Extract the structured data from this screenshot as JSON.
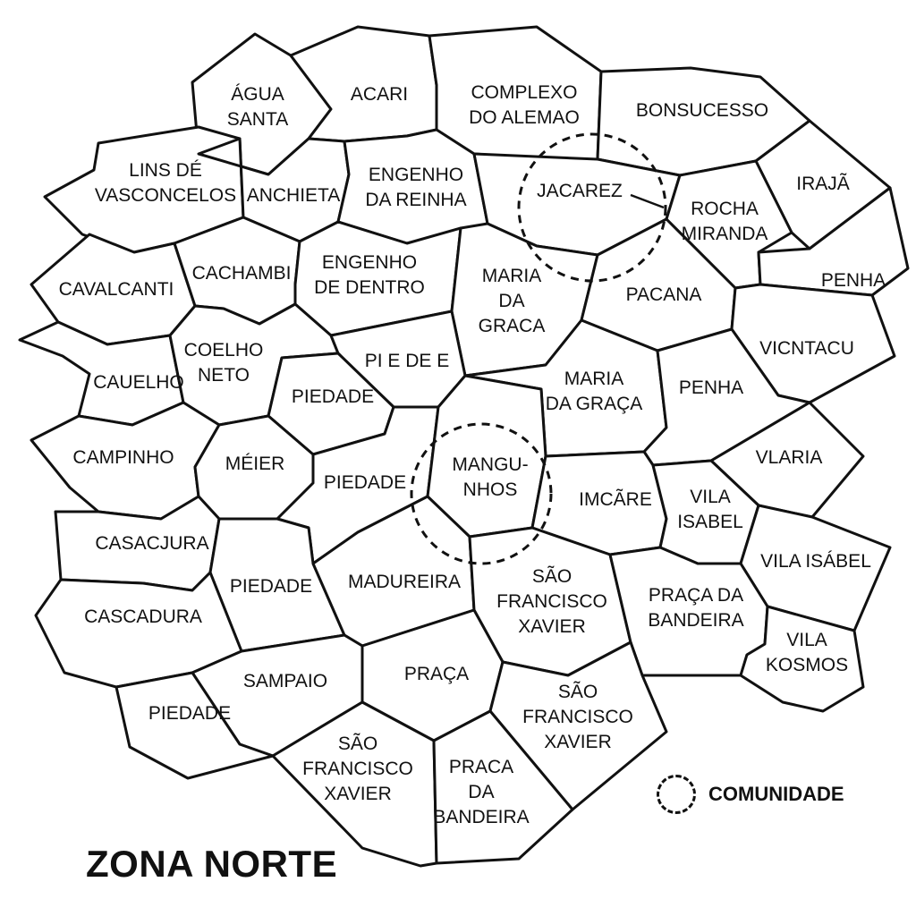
{
  "map": {
    "title": "ZONA NORTE",
    "legend": {
      "label": "COMUNIDADE",
      "symbol": "dashed-circle-icon"
    },
    "colors": {
      "stroke": "#111111",
      "fill": "#ffffff"
    },
    "regions": [
      {
        "id": "agua-santa",
        "lines": [
          "ÁGUA",
          "SANTA"
        ]
      },
      {
        "id": "acari",
        "lines": [
          "ACARI"
        ]
      },
      {
        "id": "complexo-do-alemao",
        "lines": [
          "COMPLEXO",
          "DO ALEMAO"
        ]
      },
      {
        "id": "bonsucesso",
        "lines": [
          "BONSUCESSO"
        ]
      },
      {
        "id": "lins-de-vasconcelos",
        "lines": [
          "LINS DÉ",
          "VASCONCELOS"
        ]
      },
      {
        "id": "anchieta",
        "lines": [
          "ANCHIETA"
        ]
      },
      {
        "id": "engenho-da-reinha",
        "lines": [
          "ENGENHO",
          "DA REINHA"
        ]
      },
      {
        "id": "jacarez",
        "lines": [
          "JACAREZ"
        ]
      },
      {
        "id": "iraja",
        "lines": [
          "IRAJÃ"
        ]
      },
      {
        "id": "rocha-miranda",
        "lines": [
          "ROCHA",
          "MIRANDA"
        ]
      },
      {
        "id": "penha-east",
        "lines": [
          "PENHA"
        ]
      },
      {
        "id": "cavalcanti",
        "lines": [
          "CAVALCANTI"
        ]
      },
      {
        "id": "cachambi",
        "lines": [
          "CACHAMBI"
        ]
      },
      {
        "id": "engenho-de-dentro",
        "lines": [
          "ENGENHO",
          "DE DENTRO"
        ]
      },
      {
        "id": "maria-da-graca-north",
        "lines": [
          "MARIA",
          "DA",
          "GRACA"
        ]
      },
      {
        "id": "pacana",
        "lines": [
          "PACANA"
        ]
      },
      {
        "id": "vicntacu",
        "lines": [
          "VICNTACU"
        ]
      },
      {
        "id": "cauelho",
        "lines": [
          "CAUELHO"
        ]
      },
      {
        "id": "coelho-neto",
        "lines": [
          "COELHO",
          "NETO"
        ]
      },
      {
        "id": "piedade-pi",
        "lines": [
          "PI E DE E"
        ]
      },
      {
        "id": "piedade-a",
        "lines": [
          "PIEDADE"
        ]
      },
      {
        "id": "maria-da-graca-south",
        "lines": [
          "MARIA",
          "DA GRAÇA"
        ]
      },
      {
        "id": "penha-center",
        "lines": [
          "PENHA"
        ]
      },
      {
        "id": "campinho",
        "lines": [
          "CAMPINHO"
        ]
      },
      {
        "id": "meier",
        "lines": [
          "MÉIER"
        ]
      },
      {
        "id": "piedade-b",
        "lines": [
          "PIEDADE"
        ]
      },
      {
        "id": "manguinhos",
        "lines": [
          "MANGU-",
          "NHOS"
        ]
      },
      {
        "id": "imcare",
        "lines": [
          "IMCÃRE"
        ]
      },
      {
        "id": "vlaria",
        "lines": [
          "VLARIA"
        ]
      },
      {
        "id": "vila-isabel-a",
        "lines": [
          "VILA",
          "ISABEL"
        ]
      },
      {
        "id": "casacjura",
        "lines": [
          "CASACJURA"
        ]
      },
      {
        "id": "vila-isabel-b",
        "lines": [
          "VILA ISÁBEL"
        ]
      },
      {
        "id": "piedade-c",
        "lines": [
          "PIEDADE"
        ]
      },
      {
        "id": "madureira",
        "lines": [
          "MADUREIRA"
        ]
      },
      {
        "id": "sao-francisco-xavier-a",
        "lines": [
          "SÃO",
          "FRANCISCO",
          "XAVIER"
        ]
      },
      {
        "id": "praca-da-bandeira-a",
        "lines": [
          "PRAÇA DA",
          "BANDEIRA"
        ]
      },
      {
        "id": "cascadura",
        "lines": [
          "CASCADURA"
        ]
      },
      {
        "id": "vila-kosmos",
        "lines": [
          "VILA",
          "KOSMOS"
        ]
      },
      {
        "id": "sampaio",
        "lines": [
          "SAMPAIO"
        ]
      },
      {
        "id": "praca",
        "lines": [
          "PRAÇA"
        ]
      },
      {
        "id": "piedade-d",
        "lines": [
          "PIEDADE"
        ]
      },
      {
        "id": "sao-francisco-xavier-b",
        "lines": [
          "SÃO",
          "FRANCISCO",
          "XAVIER"
        ]
      },
      {
        "id": "sao-francisco-xavier-c",
        "lines": [
          "SÃO",
          "FRANCISCO",
          "XAVIER"
        ]
      },
      {
        "id": "praca-da-bandeira-b",
        "lines": [
          "PRACA",
          "DA",
          "BANDEIRA"
        ]
      }
    ],
    "communities": [
      {
        "id": "jacarez"
      },
      {
        "id": "manguinhos"
      }
    ]
  }
}
